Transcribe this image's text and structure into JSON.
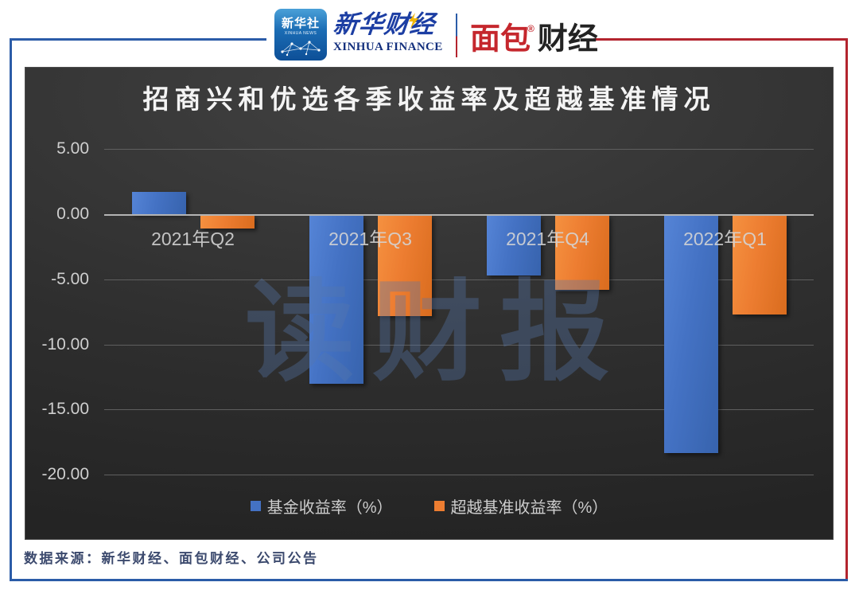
{
  "header": {
    "xinhua_news": {
      "cn": "新华社",
      "en": "XINHUA NEWS"
    },
    "xinhua_finance": {
      "cn": "新华财经",
      "en": "XINHUA FINANCE"
    },
    "mianbao": {
      "part1": "面包",
      "part2": "财经",
      "reg": "®"
    }
  },
  "chart_data": {
    "type": "bar",
    "title": "招商兴和优选各季收益率及超越基准情况",
    "categories": [
      "2021年Q2",
      "2021年Q3",
      "2021年Q4",
      "2022年Q1"
    ],
    "series": [
      {
        "name": "基金收益率（%）",
        "color": "#4472C4",
        "values": [
          1.7,
          -12.9,
          -4.6,
          -18.2
        ]
      },
      {
        "name": "超越基准收益率（%）",
        "color": "#ED7D31",
        "values": [
          -1.0,
          -7.7,
          -5.7,
          -7.6
        ]
      }
    ],
    "y_ticks": [
      {
        "value": 5,
        "label": "5.00"
      },
      {
        "value": 0,
        "label": "0.00"
      },
      {
        "value": -5,
        "label": "-5.00"
      },
      {
        "value": -10,
        "label": "-10.00"
      },
      {
        "value": -15,
        "label": "-15.00"
      },
      {
        "value": -20,
        "label": "-20.00"
      }
    ],
    "ylim": [
      -20,
      5
    ],
    "grid": true,
    "legend_position": "bottom",
    "watermark": "读财报"
  },
  "footer": {
    "source": "数据来源：新华财经、面包财经、公司公告"
  }
}
